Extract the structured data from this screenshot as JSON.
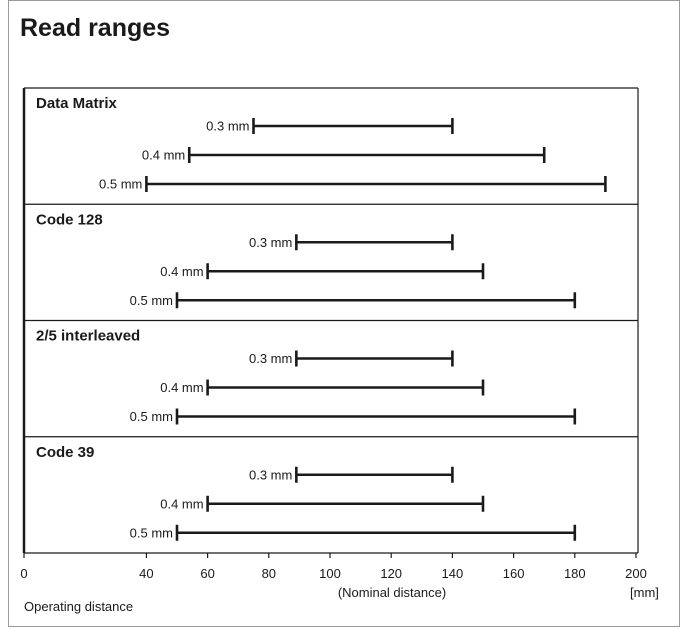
{
  "page_title": "Read ranges",
  "chart_data": {
    "type": "range-bar",
    "title": "Read ranges",
    "groups": [
      {
        "name": "Data Matrix",
        "bars": [
          {
            "label": "0.3 mm",
            "min": 75,
            "max": 140
          },
          {
            "label": "0.4 mm",
            "min": 54,
            "max": 170
          },
          {
            "label": "0.5 mm",
            "min": 40,
            "max": 190
          }
        ]
      },
      {
        "name": "Code 128",
        "bars": [
          {
            "label": "0.3 mm",
            "min": 89,
            "max": 140
          },
          {
            "label": "0.4 mm",
            "min": 60,
            "max": 150
          },
          {
            "label": "0.5 mm",
            "min": 50,
            "max": 180
          }
        ]
      },
      {
        "name": "2/5 interleaved",
        "bars": [
          {
            "label": "0.3 mm",
            "min": 89,
            "max": 140
          },
          {
            "label": "0.4 mm",
            "min": 60,
            "max": 150
          },
          {
            "label": "0.5 mm",
            "min": 50,
            "max": 180
          }
        ]
      },
      {
        "name": "Code 39",
        "bars": [
          {
            "label": "0.3 mm",
            "min": 89,
            "max": 140
          },
          {
            "label": "0.4 mm",
            "min": 60,
            "max": 150
          },
          {
            "label": "0.5 mm",
            "min": 50,
            "max": 180
          }
        ]
      }
    ],
    "x_ticks": [
      0,
      40,
      60,
      80,
      100,
      120,
      140,
      160,
      180,
      200
    ],
    "x_tick_labels": [
      "0",
      "40",
      "60",
      "80",
      "100",
      "120",
      "140",
      "160",
      "180",
      "200"
    ],
    "xlim": [
      0,
      200
    ],
    "x_label_left": "Operating distance",
    "x_label_center": "(Nominal distance)",
    "x_unit": "[mm]",
    "grid": false
  }
}
